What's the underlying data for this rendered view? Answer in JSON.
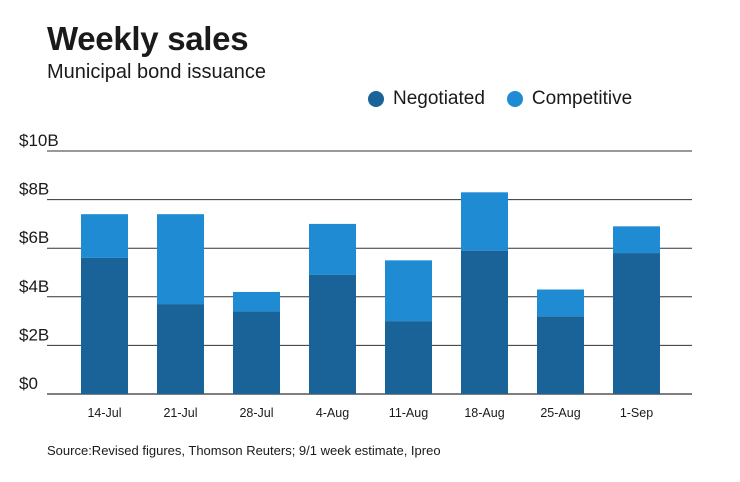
{
  "title": "Weekly sales",
  "subtitle": "Municipal bond issuance",
  "source": "Source:Revised figures, Thomson Reuters; 9/1 week estimate, Ipreo",
  "colors": {
    "negotiated": "#1a6399",
    "competitive": "#1f8bd2",
    "grid": "#333333"
  },
  "legend": [
    {
      "name": "Negotiated",
      "color": "#1a6399"
    },
    {
      "name": "Competitive",
      "color": "#1f8bd2"
    }
  ],
  "chart_data": {
    "type": "bar",
    "stacked": true,
    "title": "Weekly sales",
    "subtitle": "Municipal bond issuance",
    "xlabel": "",
    "ylabel": "",
    "ylim": [
      0,
      10
    ],
    "yticks": [
      0,
      2,
      4,
      6,
      8,
      10
    ],
    "ytick_labels": [
      "$0",
      "$2B",
      "$4B",
      "$6B",
      "$8B",
      "$10B"
    ],
    "categories": [
      "14-Jul",
      "21-Jul",
      "28-Jul",
      "4-Aug",
      "11-Aug",
      "18-Aug",
      "25-Aug",
      "1-Sep"
    ],
    "series": [
      {
        "name": "Negotiated",
        "values": [
          5.6,
          3.7,
          3.4,
          4.9,
          3.0,
          5.9,
          3.2,
          5.8
        ]
      },
      {
        "name": "Competitive",
        "values": [
          1.8,
          3.7,
          0.8,
          2.1,
          2.5,
          2.4,
          1.1,
          1.1
        ]
      }
    ]
  }
}
